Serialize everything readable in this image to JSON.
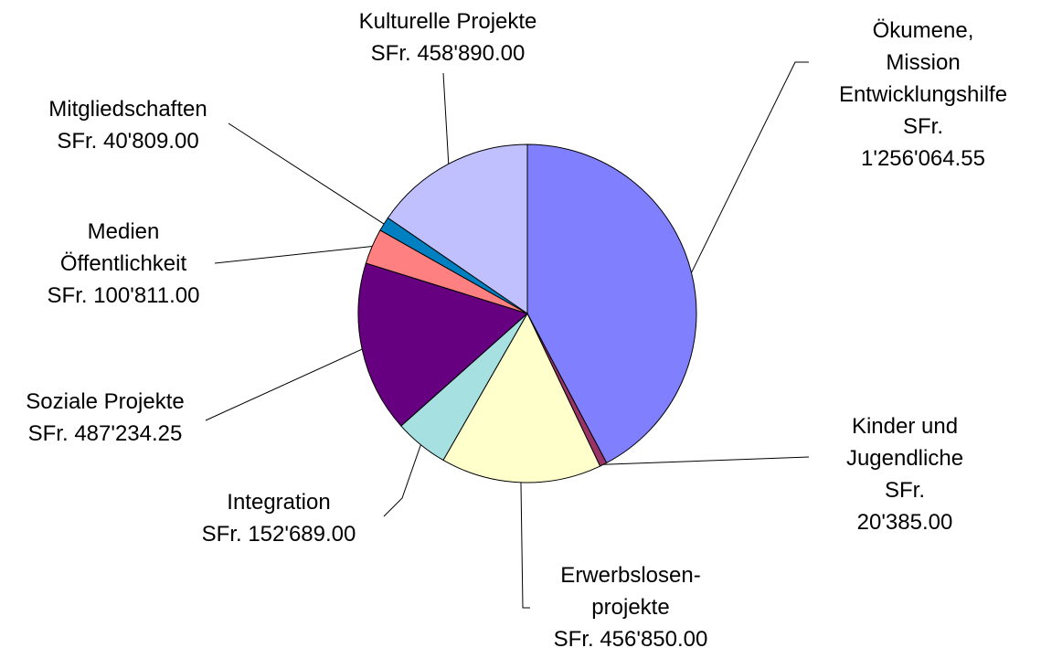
{
  "chart_data": {
    "type": "pie",
    "categories": [
      "Ökumene, Mission\nEntwicklungshilfe",
      "Kinder und\nJugendliche",
      "Erwerbslosen-\nprojekte",
      "Integration",
      "Soziale Projekte",
      "Medien\nÖffentlichkeit",
      "Mitgliedschaften",
      "Kulturelle Projekte"
    ],
    "values": [
      1256064.55,
      20385,
      456850,
      152689,
      487234.25,
      100811,
      40809,
      458890
    ],
    "value_labels": [
      "SFr. 1'256'064.55",
      "SFr. 20'385.00",
      "SFr. 456'850.00",
      "SFr. 152'689.00",
      "SFr. 487'234.25",
      "SFr. 100'811.00",
      "SFr. 40'809.00",
      "SFr. 458'890.00"
    ],
    "colors": [
      "#8080ff",
      "#993366",
      "#ffffcc",
      "#a6e0e0",
      "#660080",
      "#ff8080",
      "#0080c0",
      "#c0c0ff"
    ]
  }
}
